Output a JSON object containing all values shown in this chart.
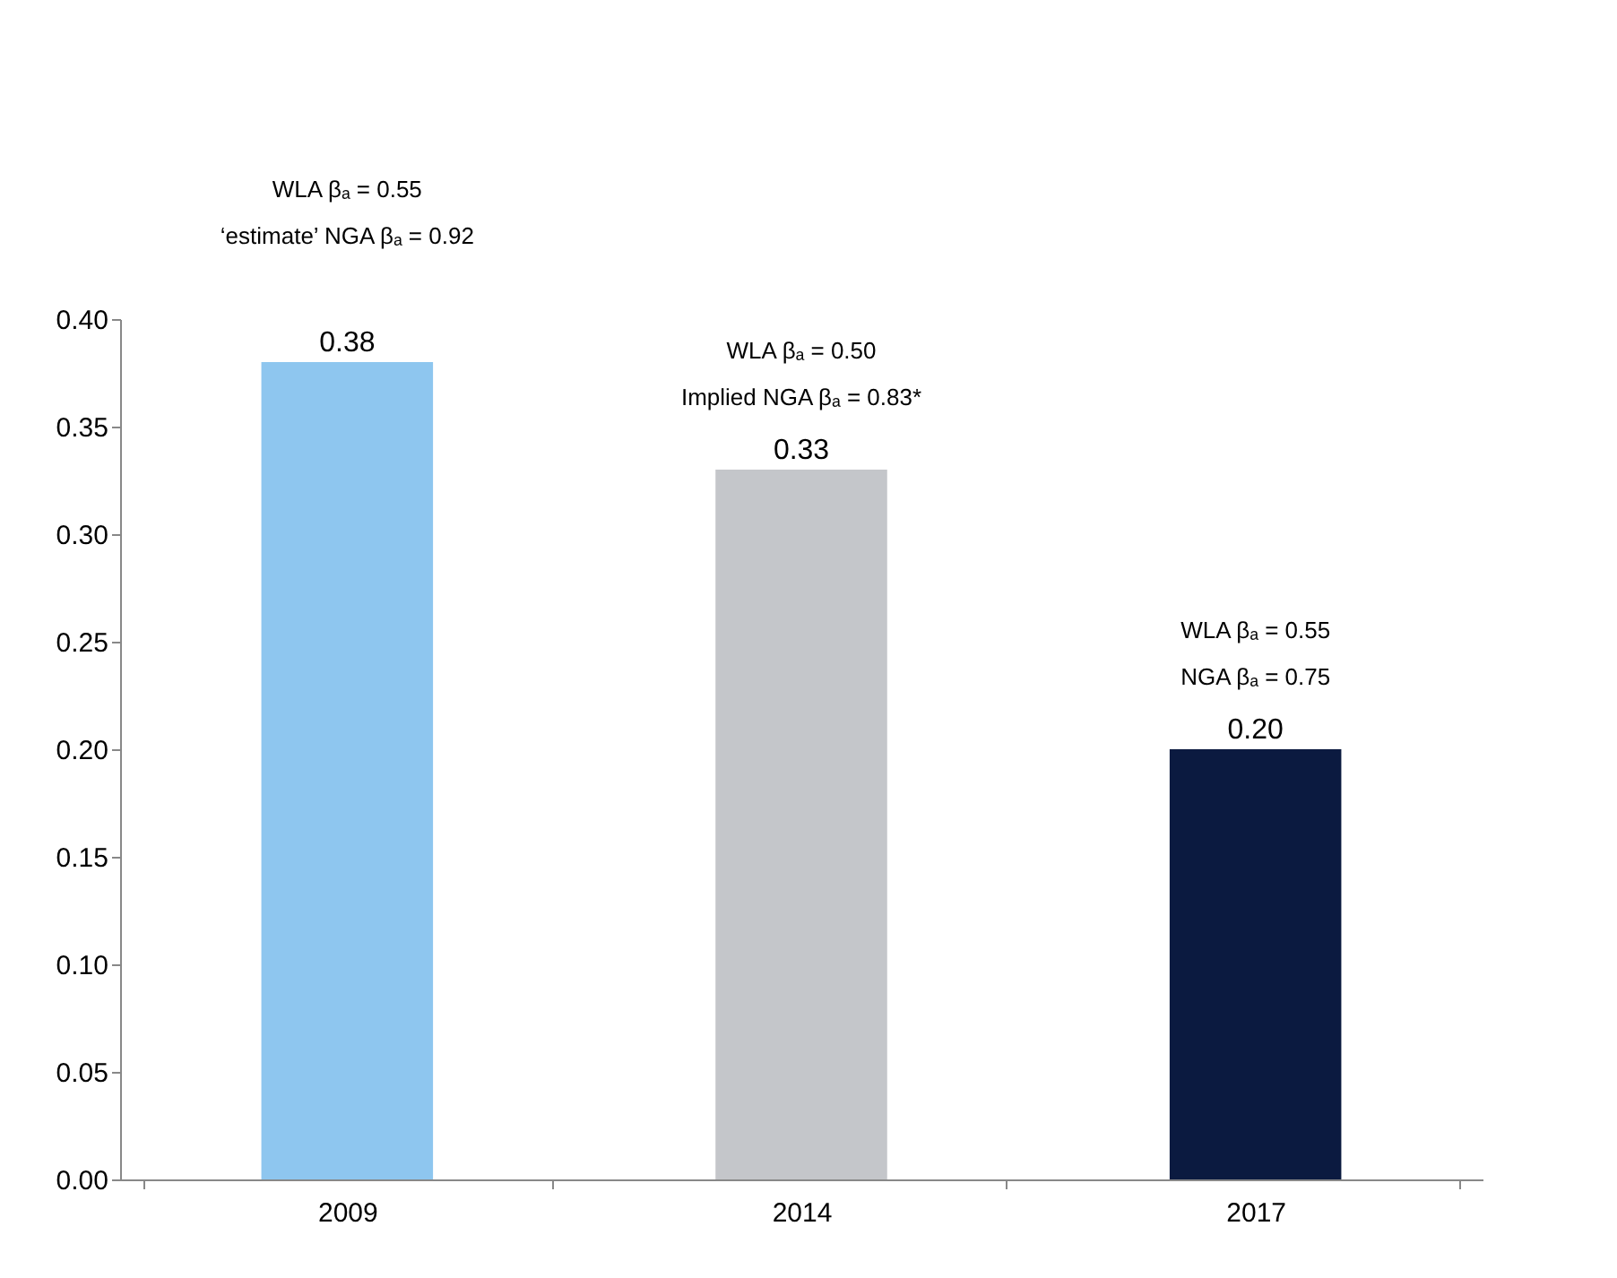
{
  "chart_data": {
    "type": "bar",
    "categories": [
      "2009",
      "2014",
      "2017"
    ],
    "values": [
      0.38,
      0.33,
      0.2
    ],
    "colors": [
      "#8ec6ef",
      "#c4c6ca",
      "#0b1a40"
    ],
    "value_labels": [
      "0.38",
      "0.33",
      "0.20"
    ],
    "ylim": [
      0,
      0.4
    ],
    "yticks": [
      {
        "value": 0,
        "label": "0.00"
      },
      {
        "value": 0.05,
        "label": "0.05"
      },
      {
        "value": 0.1,
        "label": "0.10"
      },
      {
        "value": 0.15,
        "label": "0.15"
      },
      {
        "value": 0.2,
        "label": "0.20"
      },
      {
        "value": 0.25,
        "label": "0.25"
      },
      {
        "value": 0.3,
        "label": "0.30"
      },
      {
        "value": 0.35,
        "label": "0.35"
      },
      {
        "value": 0.4,
        "label": "0.40"
      }
    ],
    "grid": false,
    "annotations": [
      "WLA βₐ = 0.55",
      "‘estimate’ NGA βₐ = 0.92",
      "WLA βₐ = 0.50",
      "Implied NGA βₐ = 0.83*",
      "WLA βₐ = 0.55",
      "NGA βₐ = 0.75"
    ]
  }
}
